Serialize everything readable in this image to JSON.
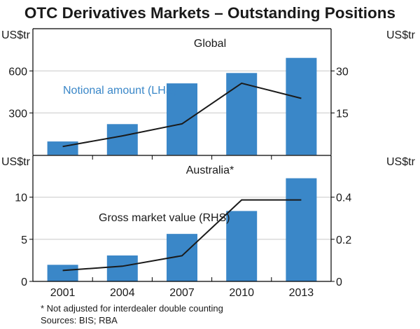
{
  "title": "OTC Derivatives Markets – Outstanding Positions",
  "footnote": "*     Not adjusted for interdealer double counting",
  "sources": "Sources: BIS; RBA",
  "colors": {
    "bar": "#3a87c8",
    "line": "#1a1a1a",
    "grid": "#c8c8c8",
    "label_blue": "#3a87c8"
  },
  "chart_data": [
    {
      "type": "bar+line",
      "panel_title": "Global",
      "categories": [
        "2001",
        "2004",
        "2007",
        "2010",
        "2013"
      ],
      "left_unit": "US$tr",
      "right_unit": "US$tr",
      "left_ylim": [
        0,
        900
      ],
      "left_ticks": [
        "300",
        "600"
      ],
      "right_ylim": [
        0,
        45
      ],
      "right_ticks": [
        "15",
        "30"
      ],
      "grid": true,
      "series": [
        {
          "name": "Notional amount (LHS)",
          "type": "bar",
          "axis": "left",
          "values": [
            96,
            220,
            511,
            585,
            693
          ]
        },
        {
          "type": "line",
          "axis": "right",
          "values": [
            3.0,
            6.8,
            11.1,
            25.6,
            20.2
          ]
        }
      ]
    },
    {
      "type": "bar+line",
      "panel_title": "Australia*",
      "categories": [
        "2001",
        "2004",
        "2007",
        "2010",
        "2013"
      ],
      "left_unit": "US$tr",
      "right_unit": "US$tr",
      "left_ylim": [
        0,
        15
      ],
      "left_ticks": [
        "0",
        "5",
        "10"
      ],
      "right_ylim": [
        0,
        0.6
      ],
      "right_ticks": [
        "0",
        "0.2",
        "0.4"
      ],
      "grid": true,
      "series": [
        {
          "type": "bar",
          "axis": "left",
          "values": [
            1.97,
            3.08,
            5.64,
            8.36,
            12.25
          ]
        },
        {
          "name": "Gross market value (RHS)",
          "type": "line",
          "axis": "right",
          "values": [
            0.052,
            0.072,
            0.122,
            0.387,
            0.387
          ]
        }
      ]
    }
  ]
}
